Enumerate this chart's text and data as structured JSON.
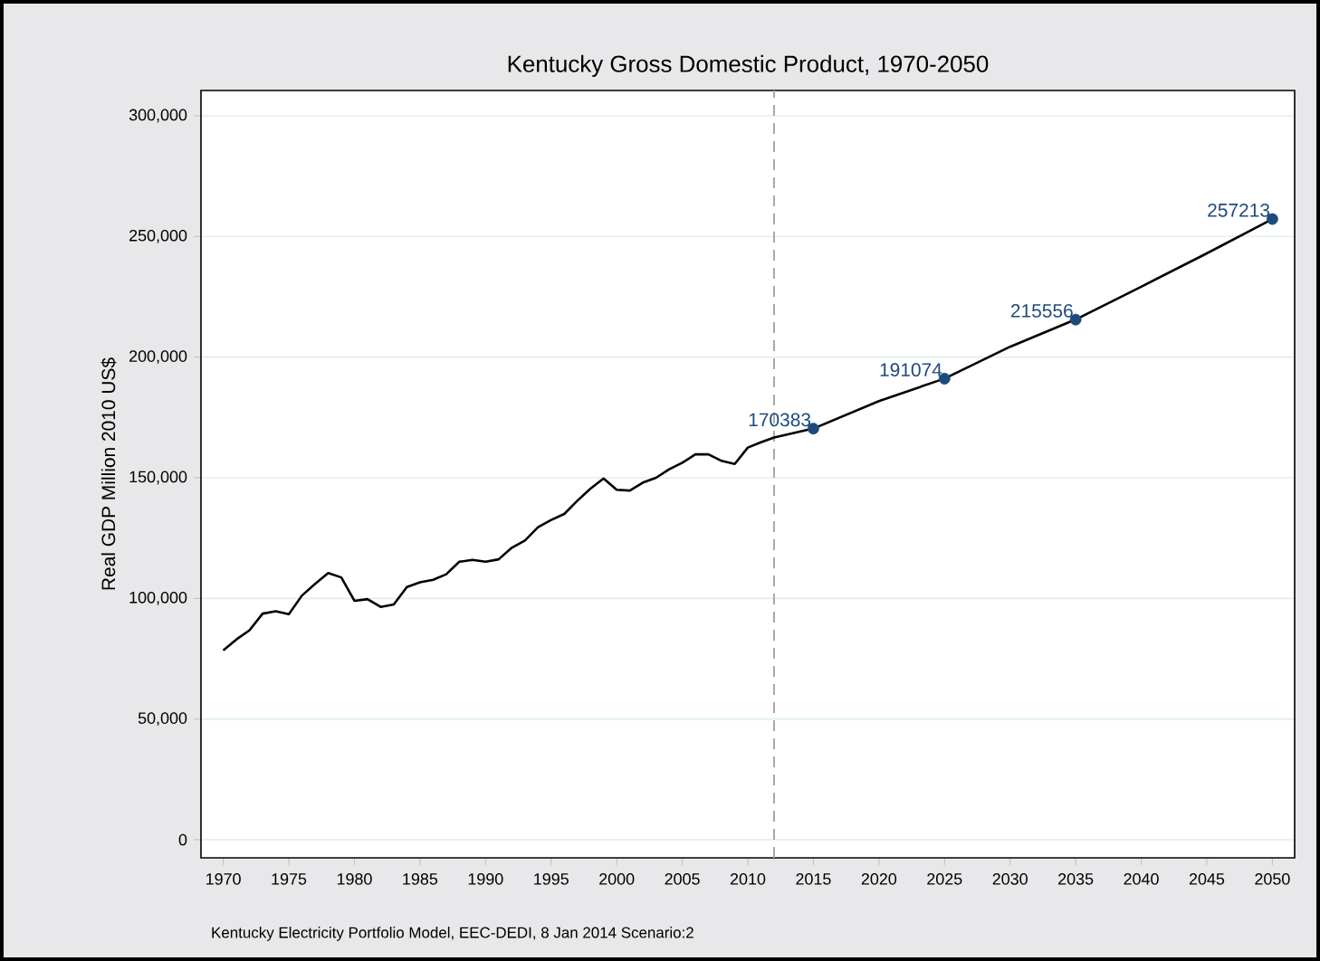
{
  "chart_data": {
    "type": "line",
    "title": "Kentucky Gross Domestic Product, 1970-2050",
    "ylabel": "Real GDP Million 2010 US$",
    "annotations": [
      "Kentucky Electricity Portfolio Model, EEC-DEDI, 8 Jan 2014 Scenario:2"
    ],
    "xlim": [
      1968.3,
      2051.7
    ],
    "ylim": [
      -7500,
      310500
    ],
    "xticks": [
      1970,
      1975,
      1980,
      1985,
      1990,
      1995,
      2000,
      2005,
      2010,
      2015,
      2020,
      2025,
      2030,
      2035,
      2040,
      2045,
      2050
    ],
    "yticks": [
      0,
      {
        "value": 50000,
        "label": "50,000"
      },
      {
        "value": 100000,
        "label": "100,000"
      },
      {
        "value": 150000,
        "label": "150,000"
      },
      {
        "value": 200000,
        "label": "200,000"
      },
      {
        "value": 250000,
        "label": "250,000"
      },
      {
        "value": 300000,
        "label": "300,000"
      }
    ],
    "grid": "y",
    "line_style": "solid",
    "ref_lines": [
      {
        "axis": "x",
        "value": 2012,
        "color": "#a8a8a8",
        "line_style": "dashed"
      }
    ],
    "series": [
      {
        "color": "#000000",
        "marker": "none",
        "x": [
          1970,
          1971,
          1972,
          1973,
          1974,
          1975,
          1976,
          1977,
          1978,
          1979,
          1980,
          1981,
          1982,
          1983,
          1984,
          1985,
          1986,
          1987,
          1988,
          1989,
          1990,
          1991,
          1992,
          1993,
          1994,
          1995,
          1996,
          1997,
          1998,
          1999,
          2000,
          2001,
          2002,
          2003,
          2004,
          2005,
          2006,
          2007,
          2008,
          2009,
          2010,
          2011,
          2012,
          2015,
          2020,
          2025,
          2030,
          2035,
          2040,
          2045,
          2050
        ],
        "values": [
          78500,
          83000,
          86800,
          93700,
          94700,
          93500,
          101200,
          106000,
          110500,
          108700,
          99000,
          99700,
          96500,
          97500,
          104700,
          106700,
          107700,
          110000,
          115200,
          116000,
          115200,
          116200,
          121000,
          124000,
          129500,
          132500,
          135000,
          140500,
          145500,
          149700,
          145000,
          144700,
          148000,
          150000,
          153500,
          156200,
          159700,
          159700,
          157000,
          155700,
          162500,
          164700,
          166700,
          170400,
          181800,
          191100,
          204300,
          215600,
          229200,
          243000,
          257200
        ]
      },
      {
        "type": "scatter",
        "color": "#1c4a7c",
        "marker": "circle",
        "x": [
          2015,
          2025,
          2035,
          2050
        ],
        "values": [
          170383,
          191074,
          215556,
          257213
        ],
        "value_labels": [
          "170383",
          "191074",
          "215556",
          "257213"
        ]
      }
    ]
  }
}
